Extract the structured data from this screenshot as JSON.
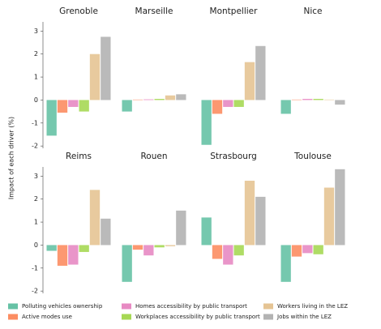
{
  "y_label": "Impact of each driver (%)",
  "legend": {
    "items": [
      {
        "name": "Polluting vehicles ownership",
        "color": "#66c2a5"
      },
      {
        "name": "Active modes use",
        "color": "#fc8d62"
      },
      {
        "name": "Homes accessibility by public transport",
        "color": "#e78ac3"
      },
      {
        "name": "Workplaces accessibility by public transport",
        "color": "#a6d854"
      },
      {
        "name": "Workers living in the LEZ",
        "color": "#e5c494"
      },
      {
        "name": "Jobs within the LEZ",
        "color": "#b3b3b3"
      }
    ]
  },
  "chart_data": [
    {
      "type": "bar",
      "title": "Grenoble",
      "values": [
        -1.55,
        -0.55,
        -0.3,
        -0.5,
        2.0,
        2.75
      ],
      "ylim": [
        -2.1,
        3.4
      ],
      "yticks": [
        -2,
        -1,
        0,
        1,
        2,
        3
      ]
    },
    {
      "type": "bar",
      "title": "Marseille",
      "values": [
        -0.5,
        0.02,
        0.03,
        0.05,
        0.2,
        0.25
      ],
      "ylim": [
        -2.1,
        3.4
      ]
    },
    {
      "type": "bar",
      "title": "Montpellier",
      "values": [
        -1.95,
        -0.6,
        -0.3,
        -0.3,
        1.65,
        2.35
      ],
      "ylim": [
        -2.1,
        3.4
      ]
    },
    {
      "type": "bar",
      "title": "Nice",
      "values": [
        -0.6,
        0.02,
        0.05,
        0.05,
        0.02,
        -0.2
      ],
      "ylim": [
        -2.1,
        3.4
      ]
    },
    {
      "type": "bar",
      "title": "Reims",
      "values": [
        -0.25,
        -0.9,
        -0.85,
        -0.3,
        2.4,
        1.15
      ],
      "ylim": [
        -2.1,
        3.4
      ],
      "yticks": [
        -2,
        -1,
        0,
        1,
        2,
        3
      ]
    },
    {
      "type": "bar",
      "title": "Rouen",
      "values": [
        -1.6,
        -0.2,
        -0.45,
        -0.1,
        -0.05,
        1.5
      ],
      "ylim": [
        -2.1,
        3.4
      ]
    },
    {
      "type": "bar",
      "title": "Strasbourg",
      "values": [
        1.2,
        -0.6,
        -0.85,
        -0.45,
        2.8,
        2.1
      ],
      "ylim": [
        -2.1,
        3.4
      ]
    },
    {
      "type": "bar",
      "title": "Toulouse",
      "values": [
        -1.6,
        -0.5,
        -0.35,
        -0.4,
        2.5,
        3.3
      ],
      "ylim": [
        -2.1,
        3.4
      ]
    }
  ]
}
